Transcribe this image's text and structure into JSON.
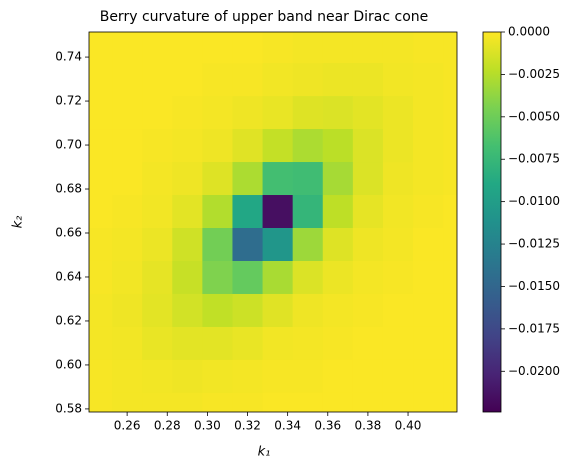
{
  "chart_data": {
    "type": "heatmap",
    "title": "Berry curvature of upper band near Dirac cone",
    "x_label": "k₁",
    "y_label": "k₂",
    "x": [
      0.245,
      0.26,
      0.275,
      0.29,
      0.305,
      0.32,
      0.335,
      0.35,
      0.365,
      0.38,
      0.395,
      0.41,
      0.425
    ],
    "y": [
      0.58,
      0.595,
      0.61,
      0.625,
      0.64,
      0.655,
      0.67,
      0.685,
      0.7,
      0.715,
      0.73,
      0.745
    ],
    "values": [
      [
        -0.0002,
        -0.0003,
        -0.0003,
        -0.0003,
        -0.0002,
        -0.0002,
        -0.0001,
        -0.0001,
        -0.0001,
        -0.0001,
        -0.0001,
        -0.0001,
        -0.0001
      ],
      [
        -0.0002,
        -0.0003,
        -0.0004,
        -0.0005,
        -0.0004,
        -0.0003,
        -0.0002,
        -0.0002,
        -0.0001,
        -0.0001,
        -0.0001,
        -0.0001,
        -0.0001
      ],
      [
        -0.0003,
        -0.0004,
        -0.0007,
        -0.0009,
        -0.0009,
        -0.0007,
        -0.0004,
        -0.0003,
        -0.0002,
        -0.0001,
        -0.0001,
        -0.0001,
        -0.0001
      ],
      [
        -0.0003,
        -0.0005,
        -0.0009,
        -0.0015,
        -0.0021,
        -0.0017,
        -0.001,
        -0.0005,
        -0.0003,
        -0.0002,
        -0.0001,
        -0.0001,
        -0.0001
      ],
      [
        -0.0002,
        -0.0004,
        -0.0008,
        -0.0019,
        -0.0043,
        -0.0054,
        -0.0029,
        -0.0012,
        -0.0006,
        -0.0003,
        -0.0002,
        -0.0001,
        -0.0001
      ],
      [
        -0.0002,
        -0.0003,
        -0.0006,
        -0.0016,
        -0.0048,
        -0.0144,
        -0.0107,
        -0.0033,
        -0.0011,
        -0.0005,
        -0.0003,
        -0.0001,
        -0.0001
      ],
      [
        -0.0001,
        -0.0002,
        -0.0004,
        -0.0009,
        -0.0026,
        -0.0091,
        -0.0215,
        -0.0077,
        -0.0022,
        -0.0008,
        -0.0004,
        -0.0002,
        -0.0001
      ],
      [
        -0.0001,
        -0.0001,
        -0.0003,
        -0.0005,
        -0.0011,
        -0.0028,
        -0.0068,
        -0.007,
        -0.003,
        -0.0012,
        -0.0005,
        -0.0003,
        -0.0002
      ],
      [
        -0.0001,
        -0.0001,
        -0.0002,
        -0.0003,
        -0.0005,
        -0.001,
        -0.002,
        -0.0028,
        -0.0023,
        -0.0012,
        -0.0006,
        -0.0003,
        -0.0002
      ],
      [
        -0.0001,
        -0.0001,
        -0.0001,
        -0.0002,
        -0.0003,
        -0.0005,
        -0.0007,
        -0.0011,
        -0.0012,
        -0.0009,
        -0.0006,
        -0.0003,
        -0.0002
      ],
      [
        -0.0001,
        -0.0001,
        -0.0001,
        -0.0001,
        -0.0002,
        -0.0002,
        -0.0004,
        -0.0005,
        -0.0006,
        -0.0006,
        -0.0004,
        -0.0003,
        -0.0002
      ],
      [
        -0.0001,
        -0.0001,
        -0.0001,
        -0.0001,
        -0.0001,
        -0.0001,
        -0.0002,
        -0.0003,
        -0.0003,
        -0.0003,
        -0.0003,
        -0.0002,
        -0.0002
      ]
    ],
    "xlim": [
      0.241,
      0.4244
    ],
    "ylim": [
      0.5786,
      0.7514
    ],
    "xticks": [
      0.26,
      0.28,
      {
        "value": 0.3,
        "label": "0.30"
      },
      0.32,
      0.34,
      0.36,
      0.38,
      {
        "value": 0.4,
        "label": "0.40"
      }
    ],
    "yticks": [
      0.58,
      {
        "value": 0.6,
        "label": "0.60"
      },
      0.62,
      0.64,
      0.66,
      0.68,
      {
        "value": 0.7,
        "label": "0.70"
      },
      0.72,
      0.74
    ],
    "colormap": "viridis",
    "clim": [
      -0.0224,
      0
    ],
    "cticks": [
      {
        "value": 0,
        "label": "0.0000"
      },
      {
        "value": -0.0025,
        "label": "−0.0025"
      },
      {
        "value": -0.005,
        "label": "−0.0050"
      },
      {
        "value": -0.0075,
        "label": "−0.0075"
      },
      {
        "value": -0.01,
        "label": "−0.0100"
      },
      {
        "value": -0.0125,
        "label": "−0.0125"
      },
      {
        "value": -0.015,
        "label": "−0.0150"
      },
      {
        "value": -0.0175,
        "label": "−0.0175"
      },
      {
        "value": -0.02,
        "label": "−0.0200"
      }
    ]
  }
}
